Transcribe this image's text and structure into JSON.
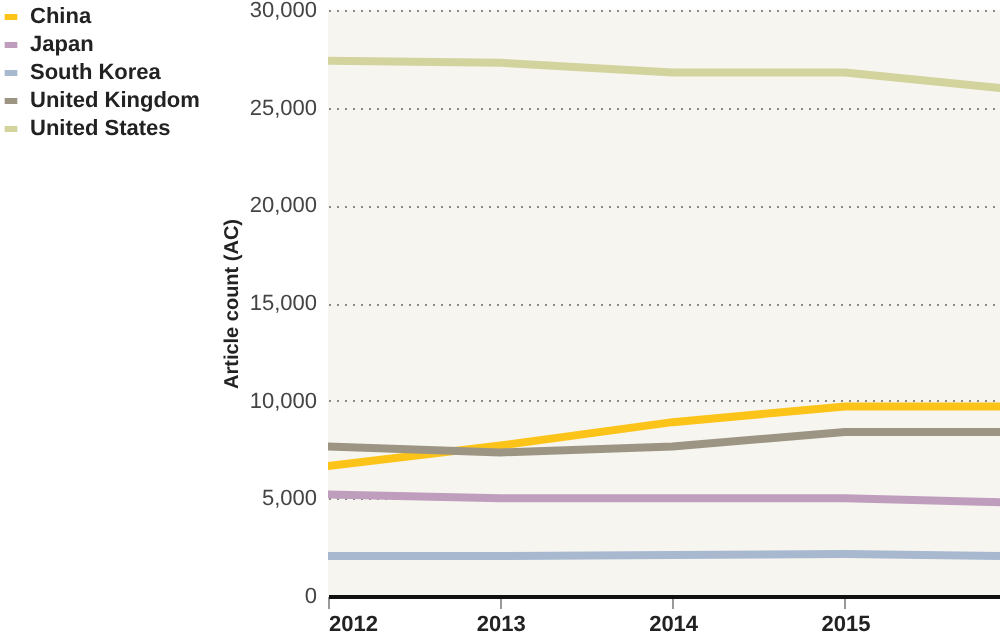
{
  "chart_data": {
    "type": "line",
    "ylabel": "Article count (AC)",
    "x": [
      2012,
      2013,
      2014,
      2015,
      2015.9
    ],
    "xlim": [
      2012,
      2015.9
    ],
    "xticks": [
      2012,
      2013,
      2014,
      2015
    ],
    "ylim": [
      0,
      30000
    ],
    "yticks": [
      {
        "value": 0,
        "label": "0"
      },
      {
        "value": 5000,
        "label": "5,000"
      },
      {
        "value": 10000,
        "label": "10,000"
      },
      {
        "value": 15000,
        "label": "15,000"
      },
      {
        "value": 20000,
        "label": "20,000"
      },
      {
        "value": 25000,
        "label": "25,000"
      },
      {
        "value": 30000,
        "label": "30,000"
      }
    ],
    "grid": "y",
    "legend": "top left",
    "marker": "none",
    "line_style": "solid",
    "series": [
      {
        "name": "China",
        "color": "#fcc419",
        "values": [
          6650,
          7700,
          8900,
          9700,
          9700
        ]
      },
      {
        "name": "Japan",
        "color": "#bf9ebd",
        "values": [
          5200,
          5000,
          5000,
          5000,
          4800
        ]
      },
      {
        "name": "South Korea",
        "color": "#a7b8cf",
        "values": [
          2050,
          2050,
          2100,
          2150,
          2050
        ]
      },
      {
        "name": "United Kingdom",
        "color": "#9c9584",
        "values": [
          7650,
          7350,
          7650,
          8400,
          8400
        ]
      },
      {
        "name": "United States",
        "color": "#d2d39d",
        "values": [
          27400,
          27300,
          26800,
          26800,
          26000
        ]
      }
    ]
  }
}
